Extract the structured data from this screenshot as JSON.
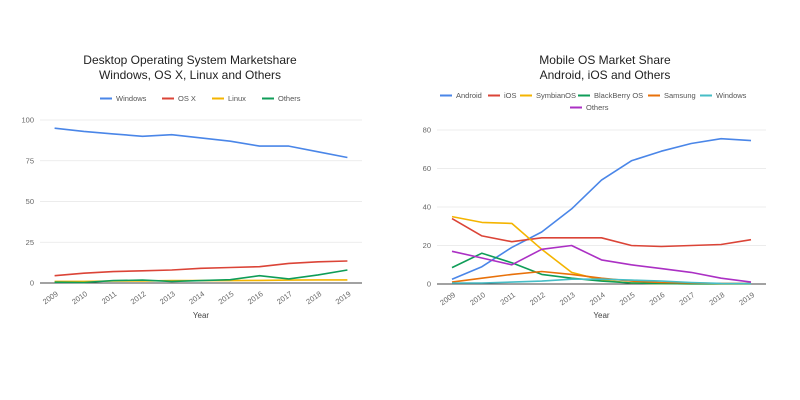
{
  "chart_data": [
    {
      "type": "line",
      "title": "Desktop Operating System Marketshare",
      "subtitle": "Windows, OS X, Linux and Others",
      "xlabel": "Year",
      "ylabel": "",
      "x": [
        "2009",
        "2010",
        "2011",
        "2012",
        "2013",
        "2014",
        "2015",
        "2016",
        "2017",
        "2018",
        "2019"
      ],
      "ylim": [
        0,
        100
      ],
      "yticks": [
        "0",
        "25",
        "50",
        "75",
        "100"
      ],
      "legend_position": "top",
      "grid": true,
      "series": [
        {
          "name": "Windows",
          "color": "#4a86e8",
          "values": [
            95,
            93,
            91.5,
            90,
            91,
            89,
            87,
            84,
            84,
            80.5,
            77
          ]
        },
        {
          "name": "OS X",
          "color": "#db4437",
          "values": [
            4.5,
            6,
            7,
            7.5,
            8,
            9,
            9.5,
            10,
            12,
            13,
            13.5
          ]
        },
        {
          "name": "Linux",
          "color": "#f4b400",
          "values": [
            1,
            1,
            1.2,
            1.3,
            1.5,
            1.5,
            1.5,
            1.6,
            1.8,
            1.9,
            1.9
          ]
        },
        {
          "name": "Others",
          "color": "#0f9d58",
          "values": [
            0.5,
            0.3,
            1.5,
            1.8,
            1,
            1.5,
            2,
            4.5,
            2.5,
            5,
            8
          ]
        }
      ]
    },
    {
      "type": "line",
      "title": "Mobile OS Market Share",
      "subtitle": "Android, iOS and Others",
      "xlabel": "Year",
      "ylabel": "",
      "x": [
        "2009",
        "2010",
        "2011",
        "2012",
        "2013",
        "2014",
        "2015",
        "2016",
        "2017",
        "2018",
        "2019"
      ],
      "ylim": [
        0,
        80
      ],
      "yticks": [
        "0",
        "20",
        "40",
        "60",
        "80"
      ],
      "legend_position": "top",
      "grid": true,
      "series": [
        {
          "name": "Android",
          "color": "#4a86e8",
          "values": [
            2.5,
            9,
            19,
            27,
            39,
            54,
            64,
            69,
            73,
            75.5,
            74.5
          ]
        },
        {
          "name": "iOS",
          "color": "#db4437",
          "values": [
            34,
            25,
            22,
            24,
            24,
            24,
            20,
            19.5,
            20,
            20.5,
            23
          ]
        },
        {
          "name": "SymbianOS",
          "color": "#f4b400",
          "values": [
            35,
            32,
            31.5,
            18,
            6,
            2,
            0.5,
            0.2,
            0.1,
            0.1,
            0.1
          ]
        },
        {
          "name": "BlackBerry OS",
          "color": "#0f9d58",
          "values": [
            8.5,
            16,
            11,
            5,
            3,
            1.5,
            0.5,
            0.2,
            0.1,
            0.1,
            0.1
          ]
        },
        {
          "name": "Samsung",
          "color": "#e8710a",
          "values": [
            1,
            3,
            5,
            6.5,
            5,
            3,
            1.5,
            0.8,
            0.5,
            0.3,
            0.3
          ]
        },
        {
          "name": "Windows",
          "color": "#46bdc6",
          "values": [
            0.5,
            0.5,
            1,
            1.5,
            2.5,
            2.5,
            2,
            1.5,
            0.8,
            0.3,
            0.2
          ]
        },
        {
          "name": "Others",
          "color": "#ab30c4",
          "values": [
            17,
            13.5,
            10,
            18,
            20,
            12.5,
            10,
            8,
            6,
            3,
            1
          ]
        }
      ]
    }
  ]
}
